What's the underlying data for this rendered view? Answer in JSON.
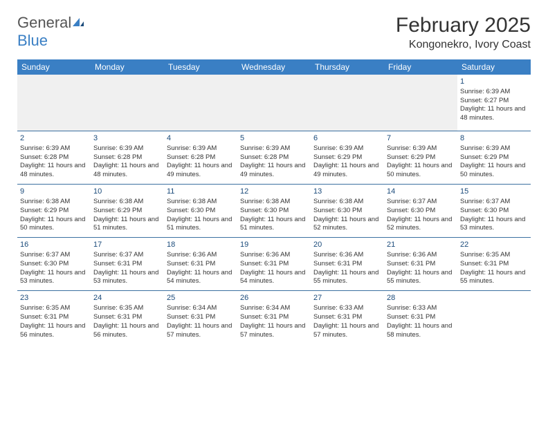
{
  "logo": {
    "word1": "General",
    "word2": "Blue"
  },
  "title": "February 2025",
  "location": "Kongonekro, Ivory Coast",
  "colors": {
    "header_bg": "#3a7fc4",
    "header_text": "#ffffff",
    "divider": "#3a6fa0",
    "daynum": "#1a4a7a",
    "text": "#333333"
  },
  "weekdays": [
    "Sunday",
    "Monday",
    "Tuesday",
    "Wednesday",
    "Thursday",
    "Friday",
    "Saturday"
  ],
  "weeks": [
    [
      null,
      null,
      null,
      null,
      null,
      null,
      {
        "n": "1",
        "sr": "Sunrise: 6:39 AM",
        "ss": "Sunset: 6:27 PM",
        "dl": "Daylight: 11 hours and 48 minutes."
      }
    ],
    [
      {
        "n": "2",
        "sr": "Sunrise: 6:39 AM",
        "ss": "Sunset: 6:28 PM",
        "dl": "Daylight: 11 hours and 48 minutes."
      },
      {
        "n": "3",
        "sr": "Sunrise: 6:39 AM",
        "ss": "Sunset: 6:28 PM",
        "dl": "Daylight: 11 hours and 48 minutes."
      },
      {
        "n": "4",
        "sr": "Sunrise: 6:39 AM",
        "ss": "Sunset: 6:28 PM",
        "dl": "Daylight: 11 hours and 49 minutes."
      },
      {
        "n": "5",
        "sr": "Sunrise: 6:39 AM",
        "ss": "Sunset: 6:28 PM",
        "dl": "Daylight: 11 hours and 49 minutes."
      },
      {
        "n": "6",
        "sr": "Sunrise: 6:39 AM",
        "ss": "Sunset: 6:29 PM",
        "dl": "Daylight: 11 hours and 49 minutes."
      },
      {
        "n": "7",
        "sr": "Sunrise: 6:39 AM",
        "ss": "Sunset: 6:29 PM",
        "dl": "Daylight: 11 hours and 50 minutes."
      },
      {
        "n": "8",
        "sr": "Sunrise: 6:39 AM",
        "ss": "Sunset: 6:29 PM",
        "dl": "Daylight: 11 hours and 50 minutes."
      }
    ],
    [
      {
        "n": "9",
        "sr": "Sunrise: 6:38 AM",
        "ss": "Sunset: 6:29 PM",
        "dl": "Daylight: 11 hours and 50 minutes."
      },
      {
        "n": "10",
        "sr": "Sunrise: 6:38 AM",
        "ss": "Sunset: 6:29 PM",
        "dl": "Daylight: 11 hours and 51 minutes."
      },
      {
        "n": "11",
        "sr": "Sunrise: 6:38 AM",
        "ss": "Sunset: 6:30 PM",
        "dl": "Daylight: 11 hours and 51 minutes."
      },
      {
        "n": "12",
        "sr": "Sunrise: 6:38 AM",
        "ss": "Sunset: 6:30 PM",
        "dl": "Daylight: 11 hours and 51 minutes."
      },
      {
        "n": "13",
        "sr": "Sunrise: 6:38 AM",
        "ss": "Sunset: 6:30 PM",
        "dl": "Daylight: 11 hours and 52 minutes."
      },
      {
        "n": "14",
        "sr": "Sunrise: 6:37 AM",
        "ss": "Sunset: 6:30 PM",
        "dl": "Daylight: 11 hours and 52 minutes."
      },
      {
        "n": "15",
        "sr": "Sunrise: 6:37 AM",
        "ss": "Sunset: 6:30 PM",
        "dl": "Daylight: 11 hours and 53 minutes."
      }
    ],
    [
      {
        "n": "16",
        "sr": "Sunrise: 6:37 AM",
        "ss": "Sunset: 6:30 PM",
        "dl": "Daylight: 11 hours and 53 minutes."
      },
      {
        "n": "17",
        "sr": "Sunrise: 6:37 AM",
        "ss": "Sunset: 6:31 PM",
        "dl": "Daylight: 11 hours and 53 minutes."
      },
      {
        "n": "18",
        "sr": "Sunrise: 6:36 AM",
        "ss": "Sunset: 6:31 PM",
        "dl": "Daylight: 11 hours and 54 minutes."
      },
      {
        "n": "19",
        "sr": "Sunrise: 6:36 AM",
        "ss": "Sunset: 6:31 PM",
        "dl": "Daylight: 11 hours and 54 minutes."
      },
      {
        "n": "20",
        "sr": "Sunrise: 6:36 AM",
        "ss": "Sunset: 6:31 PM",
        "dl": "Daylight: 11 hours and 55 minutes."
      },
      {
        "n": "21",
        "sr": "Sunrise: 6:36 AM",
        "ss": "Sunset: 6:31 PM",
        "dl": "Daylight: 11 hours and 55 minutes."
      },
      {
        "n": "22",
        "sr": "Sunrise: 6:35 AM",
        "ss": "Sunset: 6:31 PM",
        "dl": "Daylight: 11 hours and 55 minutes."
      }
    ],
    [
      {
        "n": "23",
        "sr": "Sunrise: 6:35 AM",
        "ss": "Sunset: 6:31 PM",
        "dl": "Daylight: 11 hours and 56 minutes."
      },
      {
        "n": "24",
        "sr": "Sunrise: 6:35 AM",
        "ss": "Sunset: 6:31 PM",
        "dl": "Daylight: 11 hours and 56 minutes."
      },
      {
        "n": "25",
        "sr": "Sunrise: 6:34 AM",
        "ss": "Sunset: 6:31 PM",
        "dl": "Daylight: 11 hours and 57 minutes."
      },
      {
        "n": "26",
        "sr": "Sunrise: 6:34 AM",
        "ss": "Sunset: 6:31 PM",
        "dl": "Daylight: 11 hours and 57 minutes."
      },
      {
        "n": "27",
        "sr": "Sunrise: 6:33 AM",
        "ss": "Sunset: 6:31 PM",
        "dl": "Daylight: 11 hours and 57 minutes."
      },
      {
        "n": "28",
        "sr": "Sunrise: 6:33 AM",
        "ss": "Sunset: 6:31 PM",
        "dl": "Daylight: 11 hours and 58 minutes."
      },
      null
    ]
  ]
}
